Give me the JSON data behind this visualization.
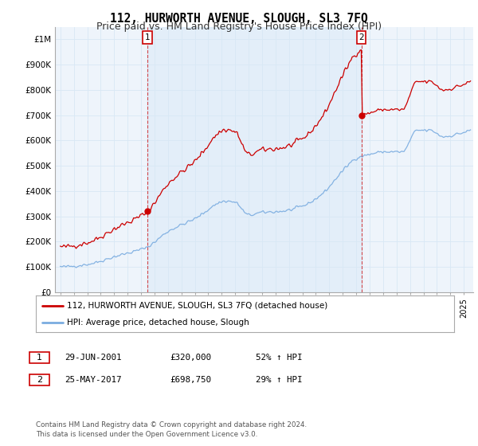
{
  "title": "112, HURWORTH AVENUE, SLOUGH, SL3 7FQ",
  "subtitle": "Price paid vs. HM Land Registry's House Price Index (HPI)",
  "ylim": [
    0,
    1050000
  ],
  "yticks": [
    0,
    100000,
    200000,
    300000,
    400000,
    500000,
    600000,
    700000,
    800000,
    900000,
    1000000
  ],
  "ytick_labels": [
    "£0",
    "£100K",
    "£200K",
    "£300K",
    "£400K",
    "£500K",
    "£600K",
    "£700K",
    "£800K",
    "£900K",
    "£1M"
  ],
  "sale1_date": 2001.49,
  "sale1_price": 320000,
  "sale2_date": 2017.38,
  "sale2_price": 698750,
  "red_line_color": "#cc0000",
  "blue_line_color": "#7aace0",
  "grid_color": "#d8e8f5",
  "background_color": "#ffffff",
  "plot_bg_color": "#eef4fb",
  "legend_line1": "112, HURWORTH AVENUE, SLOUGH, SL3 7FQ (detached house)",
  "legend_line2": "HPI: Average price, detached house, Slough",
  "table_row1_num": "1",
  "table_row1_date": "29-JUN-2001",
  "table_row1_price": "£320,000",
  "table_row1_hpi": "52% ↑ HPI",
  "table_row2_num": "2",
  "table_row2_date": "25-MAY-2017",
  "table_row2_price": "£698,750",
  "table_row2_hpi": "29% ↑ HPI",
  "footer": "Contains HM Land Registry data © Crown copyright and database right 2024.\nThis data is licensed under the Open Government Licence v3.0.",
  "title_fontsize": 10.5,
  "subtitle_fontsize": 9,
  "axis_fontsize": 7.5
}
